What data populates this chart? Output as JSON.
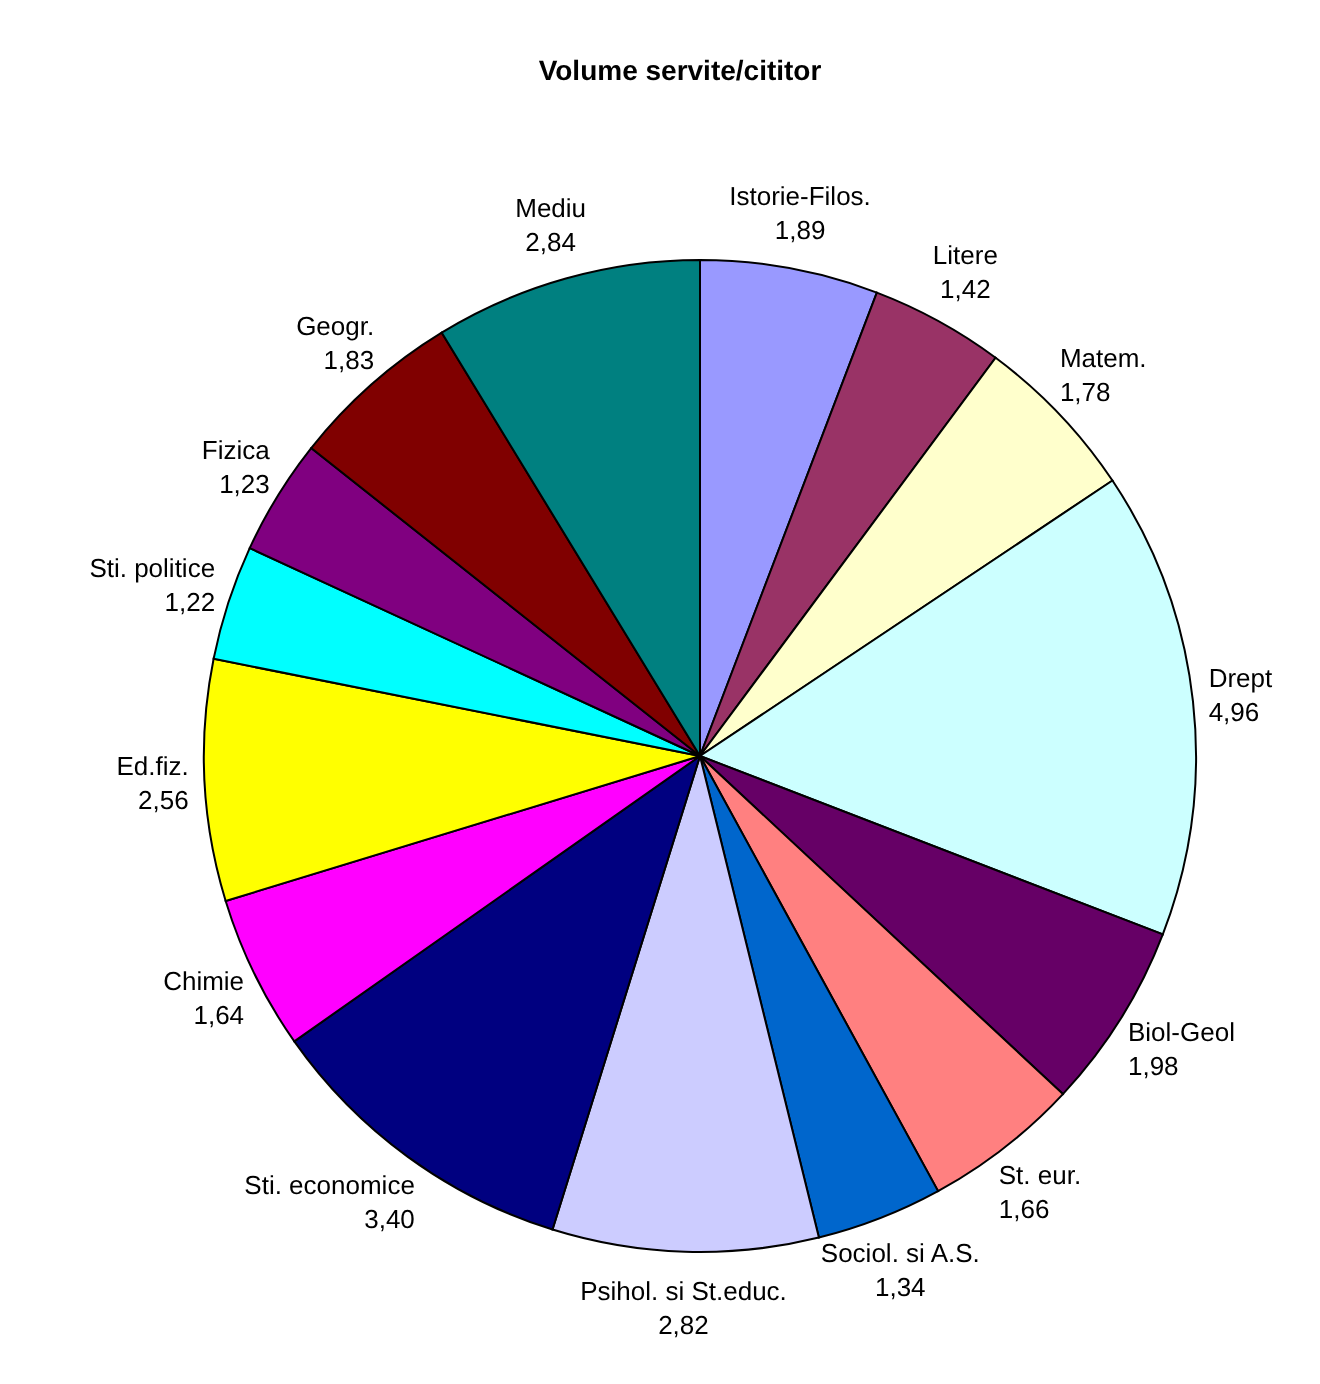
{
  "chart_data": {
    "type": "pie",
    "title": "Volume servite/cititor",
    "categories": [
      "Istorie-Filos.",
      "Litere",
      "Matem.",
      "Drept",
      "Biol-Geol",
      "St. eur.",
      "Sociol. si A.S.",
      "Psihol. si St.educ.",
      "Sti. economice",
      "Chimie",
      "Ed.fiz.",
      "Sti. politice",
      "Fizica",
      "Geogr.",
      "Mediu"
    ],
    "values": [
      1.89,
      1.42,
      1.78,
      4.96,
      1.98,
      1.66,
      1.34,
      2.82,
      3.4,
      1.64,
      2.56,
      1.22,
      1.23,
      1.83,
      2.84
    ],
    "value_labels": [
      "1,89",
      "1,42",
      "1,78",
      "4,96",
      "1,98",
      "1,66",
      "1,34",
      "2,82",
      "3,40",
      "1,64",
      "2,56",
      "1,22",
      "1,23",
      "1,83",
      "2,84"
    ],
    "colors": [
      "#9999ff",
      "#993366",
      "#ffffcc",
      "#ccffff",
      "#660066",
      "#ff8080",
      "#0066cc",
      "#ccccff",
      "#000080",
      "#ff00ff",
      "#ffff00",
      "#00ffff",
      "#800080",
      "#800000",
      "#008080"
    ]
  }
}
